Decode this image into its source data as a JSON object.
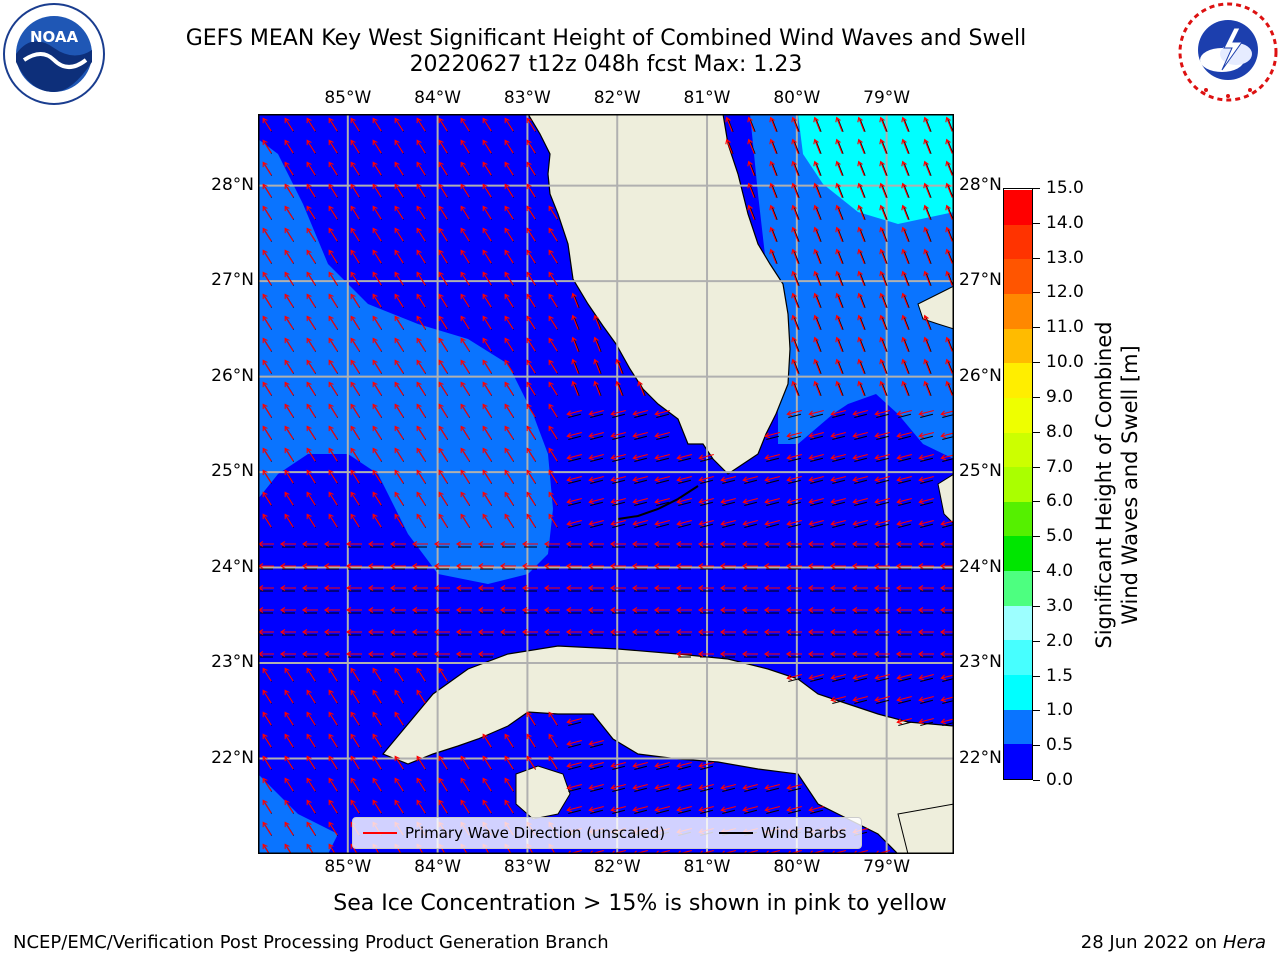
{
  "title": {
    "line1": "GEFS MEAN Key West Significant Height of Combined Wind Waves and Swell",
    "line2": "20220627 t12z 048h fcst   Max: 1.23"
  },
  "logos": {
    "noaa": {
      "name": "NOAA",
      "ring_text": "NATIONAL OCEANIC AND ATMOSPHERIC ADMINISTRATION",
      "bottom_text": "U.S. DEPARTMENT OF COMMERCE"
    },
    "nws": {
      "ring_text": "NATIONAL WEATHER SERVICE"
    }
  },
  "map": {
    "lon_labels": [
      "85°W",
      "84°W",
      "83°W",
      "82°W",
      "81°W",
      "80°W",
      "79°W"
    ],
    "lat_labels": [
      "28°N",
      "27°N",
      "26°N",
      "25°N",
      "24°N",
      "23°N",
      "22°N"
    ],
    "lon_range": [
      -86.0,
      -78.25
    ],
    "lat_range": [
      21.0,
      28.75
    ],
    "land_color": "#eeeedc",
    "grid_color": "#b0b0b0"
  },
  "colorbar": {
    "label": "Significant Height of Combined Wind Waves and Swell [m]",
    "ticks": [
      "0.0",
      "0.5",
      "1.0",
      "1.5",
      "2.0",
      "3.0",
      "4.0",
      "5.0",
      "6.0",
      "7.0",
      "8.0",
      "9.0",
      "10.0",
      "11.0",
      "12.0",
      "13.0",
      "14.0",
      "15.0"
    ],
    "colors": [
      "#0000ff",
      "#0a74ff",
      "#00ffff",
      "#47ffff",
      "#9dffff",
      "#4dff80",
      "#00e600",
      "#55f000",
      "#aaff00",
      "#ccff00",
      "#eeff00",
      "#ffee00",
      "#ffbb00",
      "#ff8800",
      "#ff5500",
      "#ff3300",
      "#ff0000"
    ]
  },
  "legend": {
    "items": [
      {
        "label": "Primary Wave Direction (unscaled)",
        "color": "#ff0000"
      },
      {
        "label": "Wind Barbs",
        "color": "#000000"
      }
    ]
  },
  "footer": {
    "ice_note": "Sea Ice Concentration > 15% is shown in pink to yellow",
    "branch": "NCEP/EMC/Verification Post Processing Product Generation Branch",
    "date": "28 Jun 2022 on",
    "host": "Hera"
  }
}
